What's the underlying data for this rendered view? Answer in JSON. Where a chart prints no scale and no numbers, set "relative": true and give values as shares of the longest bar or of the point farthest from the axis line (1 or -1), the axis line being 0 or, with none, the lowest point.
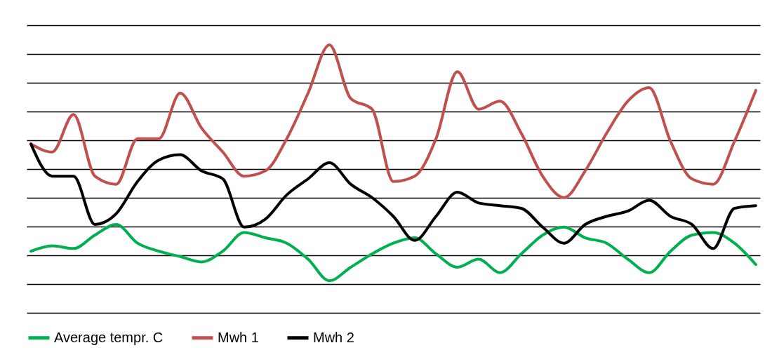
{
  "chart_data": {
    "type": "line",
    "relative": true,
    "grid": "y",
    "legend": "bottom",
    "categories": [
      null,
      null,
      null,
      null,
      null,
      null,
      null,
      null,
      null,
      null,
      null,
      null,
      null,
      null,
      null,
      null,
      null,
      null,
      null,
      null,
      null,
      null,
      null,
      null,
      null,
      null,
      null,
      null,
      null,
      null,
      null,
      null,
      null,
      null,
      null
    ],
    "series": [
      {
        "name": "Average tempr. C",
        "color": "#00b050",
        "values": [
          0.23,
          0.25,
          0.24,
          0.29,
          0.33,
          0.26,
          0.23,
          0.21,
          0.19,
          0.23,
          0.3,
          0.28,
          0.26,
          0.2,
          0.12,
          0.17,
          0.22,
          0.26,
          0.28,
          0.22,
          0.17,
          0.2,
          0.15,
          0.22,
          0.29,
          0.32,
          0.28,
          0.26,
          0.2,
          0.15,
          0.23,
          0.29,
          0.3,
          0.26,
          0.18
        ]
      },
      {
        "name": "Mwh 1",
        "color": "#c0504d",
        "values": [
          0.63,
          0.6,
          0.74,
          0.51,
          0.48,
          0.65,
          0.65,
          0.82,
          0.69,
          0.6,
          0.51,
          0.53,
          0.65,
          0.82,
          1.0,
          0.8,
          0.76,
          0.49,
          0.51,
          0.65,
          0.9,
          0.76,
          0.79,
          0.67,
          0.51,
          0.43,
          0.53,
          0.67,
          0.79,
          0.84,
          0.64,
          0.5,
          0.48,
          0.64,
          0.83
        ]
      },
      {
        "name": "Mwh 2",
        "color": "#000000",
        "values": [
          0.63,
          0.51,
          0.51,
          0.33,
          0.37,
          0.49,
          0.57,
          0.59,
          0.53,
          0.5,
          0.32,
          0.35,
          0.44,
          0.5,
          0.56,
          0.48,
          0.43,
          0.36,
          0.27,
          0.36,
          0.45,
          0.41,
          0.4,
          0.39,
          0.32,
          0.26,
          0.33,
          0.36,
          0.38,
          0.42,
          0.36,
          0.33,
          0.24,
          0.39,
          0.4
        ]
      }
    ]
  }
}
